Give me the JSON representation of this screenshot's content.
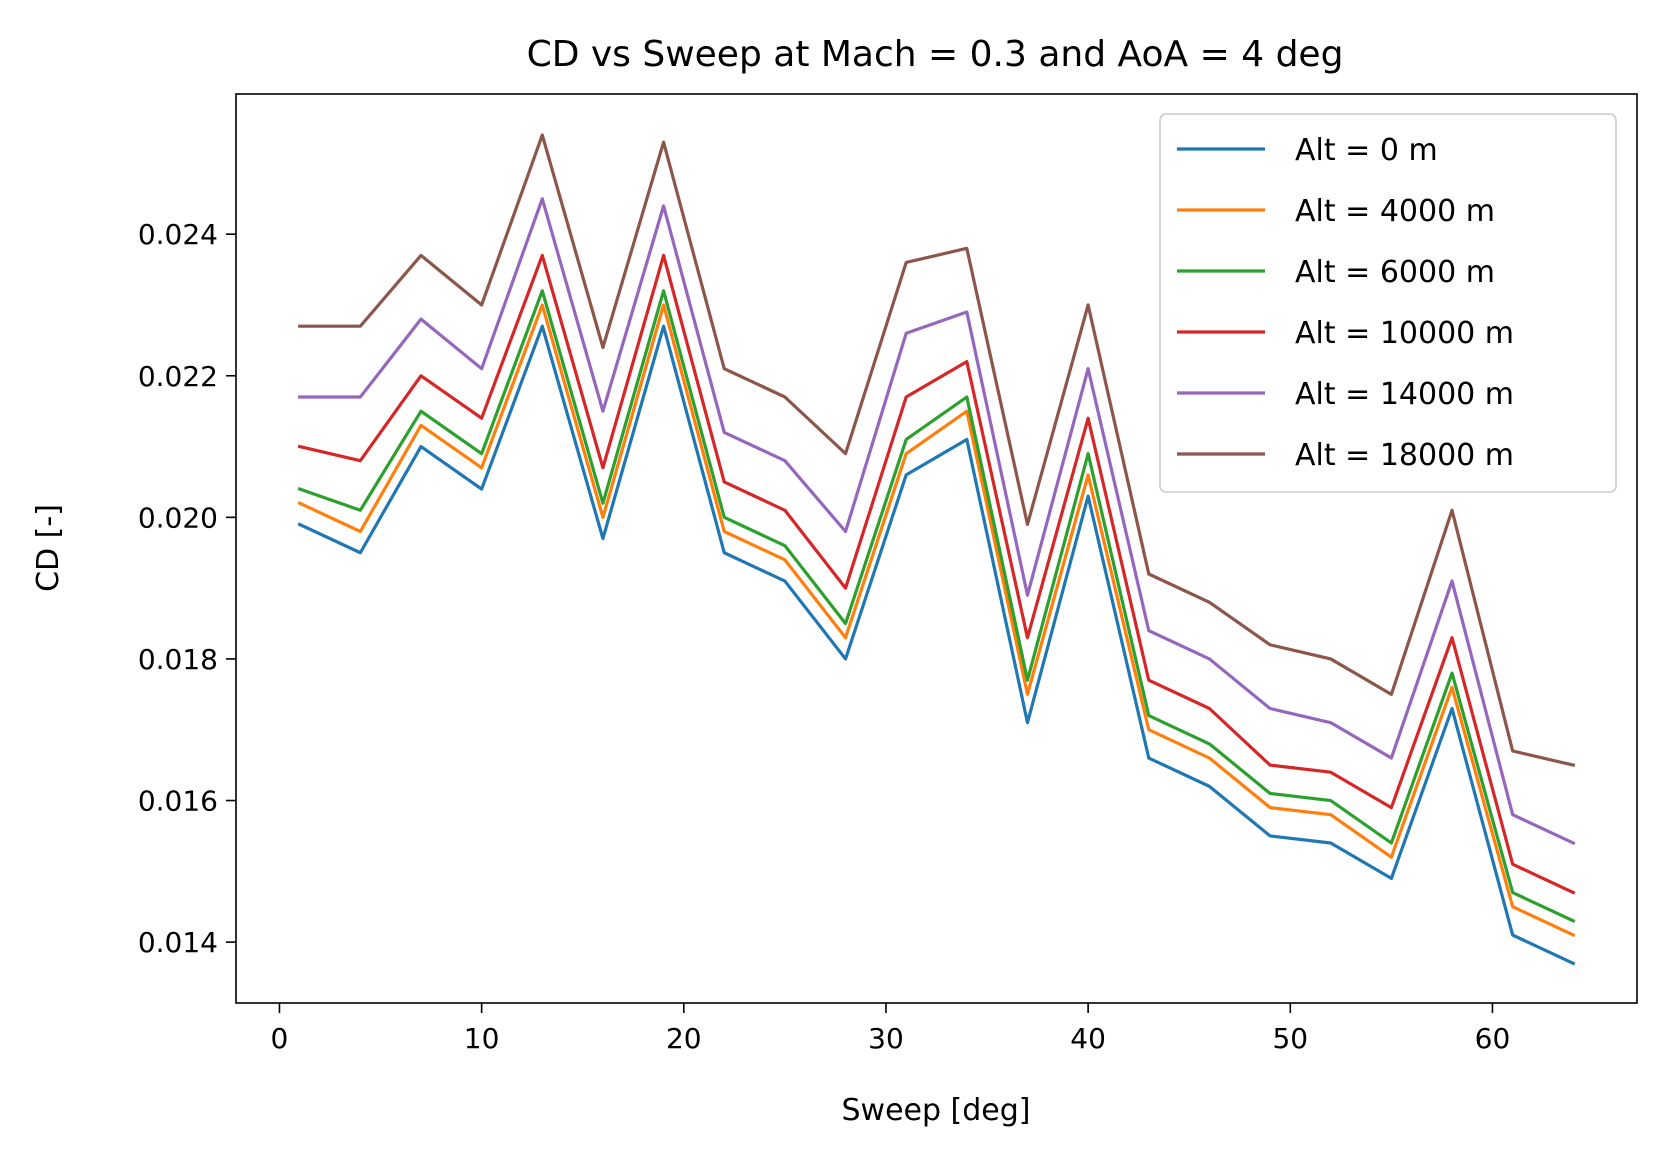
{
  "chart_data": {
    "type": "line",
    "title": "CD vs Sweep at Mach = 0.3 and AoA = 4 deg",
    "xlabel": "Sweep [deg]",
    "ylabel": "CD [-]",
    "xlim": [
      -2.15,
      67.15
    ],
    "ylim": [
      0.01314,
      0.02598
    ],
    "xticks": [
      0,
      10,
      20,
      30,
      40,
      50,
      60
    ],
    "xtick_labels": [
      "0",
      "10",
      "20",
      "30",
      "40",
      "50",
      "60"
    ],
    "yticks": [
      0.014,
      0.016,
      0.018,
      0.02,
      0.022,
      0.024
    ],
    "ytick_labels": [
      "0.014",
      "0.016",
      "0.018",
      "0.020",
      "0.022",
      "0.024"
    ],
    "grid": false,
    "legend_position": "upper right",
    "x": [
      1,
      4,
      7,
      10,
      13,
      16,
      19,
      22,
      25,
      28,
      31,
      34,
      37,
      40,
      43,
      46,
      49,
      52,
      55,
      58,
      61,
      64
    ],
    "series": [
      {
        "name": "Alt = 0 m",
        "color": "#1f77b4",
        "values": [
          0.0199,
          0.0195,
          0.021,
          0.0204,
          0.0227,
          0.0197,
          0.0227,
          0.0195,
          0.0191,
          0.018,
          0.0206,
          0.0211,
          0.0171,
          0.0203,
          0.0166,
          0.0162,
          0.0155,
          0.0154,
          0.0149,
          0.0173,
          0.0141,
          0.0137
        ]
      },
      {
        "name": "Alt = 4000 m",
        "color": "#ff7f0e",
        "values": [
          0.0202,
          0.0198,
          0.0213,
          0.0207,
          0.023,
          0.02,
          0.023,
          0.0198,
          0.0194,
          0.0183,
          0.0209,
          0.0215,
          0.0175,
          0.0206,
          0.017,
          0.0166,
          0.0159,
          0.0158,
          0.0152,
          0.0176,
          0.0145,
          0.0141
        ]
      },
      {
        "name": "Alt = 6000 m",
        "color": "#2ca02c",
        "values": [
          0.0204,
          0.0201,
          0.0215,
          0.0209,
          0.0232,
          0.0202,
          0.0232,
          0.02,
          0.0196,
          0.0185,
          0.0211,
          0.0217,
          0.0177,
          0.0209,
          0.0172,
          0.0168,
          0.0161,
          0.016,
          0.0154,
          0.0178,
          0.0147,
          0.0143
        ]
      },
      {
        "name": "Alt = 10000 m",
        "color": "#d62728",
        "values": [
          0.021,
          0.0208,
          0.022,
          0.0214,
          0.0237,
          0.0207,
          0.0237,
          0.0205,
          0.0201,
          0.019,
          0.0217,
          0.0222,
          0.0183,
          0.0214,
          0.0177,
          0.0173,
          0.0165,
          0.0164,
          0.0159,
          0.0183,
          0.0151,
          0.0147
        ]
      },
      {
        "name": "Alt = 14000 m",
        "color": "#9467bd",
        "values": [
          0.0217,
          0.0217,
          0.0228,
          0.0221,
          0.0245,
          0.0215,
          0.0244,
          0.0212,
          0.0208,
          0.0198,
          0.0226,
          0.0229,
          0.0189,
          0.0221,
          0.0184,
          0.018,
          0.0173,
          0.0171,
          0.0166,
          0.0191,
          0.0158,
          0.0154
        ]
      },
      {
        "name": "Alt = 18000 m",
        "color": "#8c564b",
        "values": [
          0.0227,
          0.0227,
          0.0237,
          0.023,
          0.0254,
          0.0224,
          0.0253,
          0.0221,
          0.0217,
          0.0209,
          0.0236,
          0.0238,
          0.0199,
          0.023,
          0.0192,
          0.0188,
          0.0182,
          0.018,
          0.0175,
          0.0201,
          0.0167,
          0.0165
        ]
      }
    ]
  }
}
